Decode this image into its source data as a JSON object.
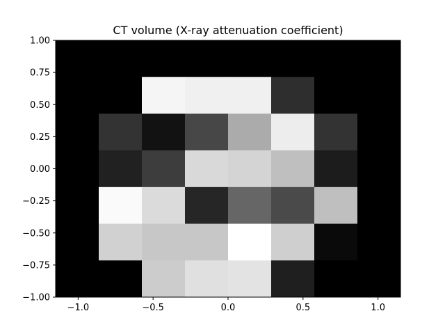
{
  "chart_data": {
    "type": "heatmap",
    "title": "CT volume (X-ray attenuation coefficient)",
    "xlabel": "",
    "ylabel": "",
    "colormap": "gray",
    "background_color": "#000000",
    "xlim": [
      -1.15,
      1.15
    ],
    "ylim": [
      -1.0,
      1.0
    ],
    "x_ticks": [
      -1.0,
      -0.5,
      0.0,
      0.5,
      1.0
    ],
    "x_tick_labels": [
      "−1.0",
      "−0.5",
      "0.0",
      "0.5",
      "1.0"
    ],
    "y_ticks": [
      -1.0,
      -0.75,
      -0.5,
      -0.25,
      0.0,
      0.25,
      0.5,
      0.75,
      1.0
    ],
    "y_tick_labels": [
      "−1.00",
      "−0.75",
      "−0.50",
      "−0.25",
      "0.00",
      "0.25",
      "0.50",
      "0.75",
      "1.00"
    ],
    "grid": false,
    "legend": "none",
    "pixel_extent": {
      "x": [
        -1.15,
        1.15
      ],
      "y": [
        -1.0,
        1.0
      ]
    },
    "grid_size": [
      8,
      7
    ],
    "values": [
      [
        0.0,
        0.0,
        0.0,
        0.0,
        0.0,
        0.0,
        0.0,
        0.0
      ],
      [
        0.0,
        0.0,
        0.96,
        0.94,
        0.94,
        0.18,
        0.0,
        0.0
      ],
      [
        0.0,
        0.2,
        0.07,
        0.28,
        0.67,
        0.93,
        0.2,
        0.0
      ],
      [
        0.0,
        0.13,
        0.24,
        0.85,
        0.83,
        0.75,
        0.11,
        0.0
      ],
      [
        0.0,
        0.98,
        0.86,
        0.15,
        0.4,
        0.29,
        0.75,
        0.0
      ],
      [
        0.0,
        0.82,
        0.78,
        0.78,
        1.0,
        0.81,
        0.04,
        0.0
      ],
      [
        0.0,
        0.0,
        0.8,
        0.88,
        0.89,
        0.12,
        0.0,
        0.0
      ]
    ]
  }
}
